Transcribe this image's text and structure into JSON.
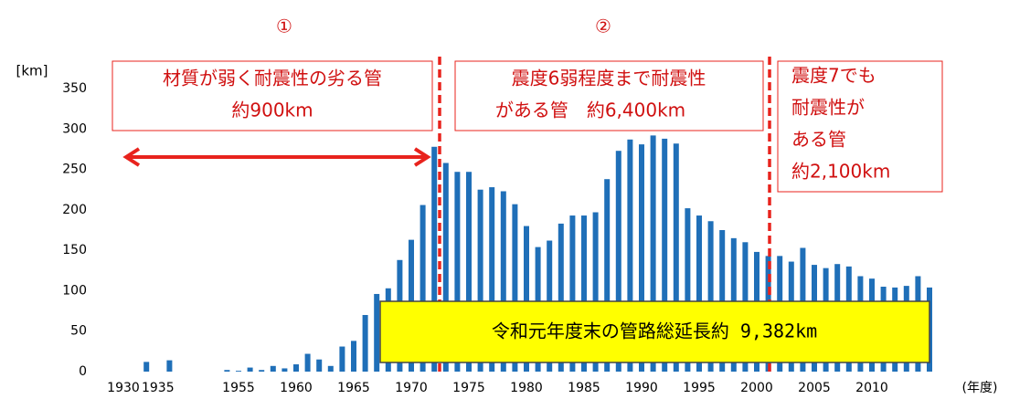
{
  "chart_data": {
    "type": "bar",
    "y_unit": "[km]",
    "x_unit": "(年度)",
    "categories": [
      "1930",
      null,
      null,
      "1935",
      null,
      null,
      null,
      null,
      null,
      null,
      "1955",
      null,
      null,
      null,
      null,
      "1960",
      null,
      null,
      null,
      null,
      "1965",
      null,
      null,
      null,
      null,
      "1970",
      null,
      null,
      null,
      null,
      "1975",
      null,
      null,
      null,
      null,
      "1980",
      null,
      null,
      null,
      null,
      "1985",
      null,
      null,
      null,
      null,
      "1990",
      null,
      null,
      null,
      null,
      "1995",
      null,
      null,
      null,
      null,
      "2000",
      null,
      null,
      null,
      null,
      "2005",
      null,
      null,
      null,
      null,
      "2010",
      null,
      null,
      null,
      null,
      null
    ],
    "values": [
      0,
      0,
      12,
      0,
      14,
      0,
      0,
      0,
      0,
      2,
      1,
      5,
      2,
      7,
      4,
      9,
      22,
      15,
      7,
      31,
      38,
      70,
      96,
      103,
      138,
      163,
      206,
      278,
      258,
      247,
      247,
      225,
      228,
      223,
      207,
      180,
      154,
      162,
      183,
      193,
      193,
      197,
      238,
      273,
      287,
      281,
      292,
      288,
      282,
      202,
      193,
      186,
      175,
      165,
      160,
      148,
      143,
      143,
      136,
      153,
      132,
      128,
      133,
      130,
      118,
      115,
      105,
      104,
      106,
      118,
      104
    ],
    "color": "#1f6fb8",
    "ylim": [
      0,
      350
    ],
    "yticks": [
      0,
      50,
      100,
      150,
      200,
      250,
      300,
      350
    ],
    "grid": false,
    "annotations": {
      "period_1": "①",
      "period_2": "②",
      "box_1": [
        "材質が弱く耐震性の劣る管",
        "約900km"
      ],
      "box_2": [
        "震度6弱程度まで耐震性",
        "がある管　約6,400km"
      ],
      "box_3": [
        "震度7でも",
        "耐震性が",
        "ある管",
        "約2,100km"
      ],
      "total": "令和元年度末の管路総延長約 9,382km"
    }
  }
}
